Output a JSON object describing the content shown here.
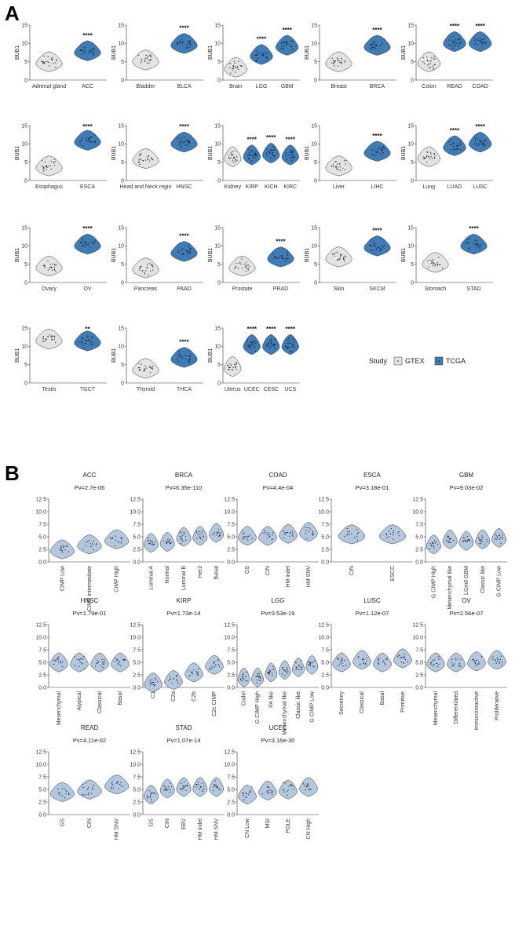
{
  "labels": {
    "panel_a": "A",
    "panel_b": "B"
  },
  "colors": {
    "gtex": "#e3e3e3",
    "tcga": "#3f7bb5",
    "subtype": "#b3c8de",
    "stroke": "#333333",
    "dot": "#111111"
  },
  "legend": {
    "title": "Study",
    "items": [
      {
        "label": "GTEX",
        "color": "#e3e3e3"
      },
      {
        "label": "TCGA",
        "color": "#3f7bb5"
      }
    ]
  },
  "chart_data": [
    {
      "panel": "A",
      "type": "violin",
      "ylabel": "BUB1",
      "ylim": [
        0,
        15
      ],
      "yticks": [
        0,
        5,
        10,
        15
      ],
      "plots": [
        {
          "groups": [
            {
              "label": "Adrenal gland",
              "study": "GTEX",
              "median": 5
            },
            {
              "label": "ACC",
              "study": "TCGA",
              "median": 8,
              "sig": "****"
            }
          ]
        },
        {
          "groups": [
            {
              "label": "Bladder",
              "study": "GTEX",
              "median": 5.5
            },
            {
              "label": "BLCA",
              "study": "TCGA",
              "median": 10,
              "sig": "****"
            }
          ]
        },
        {
          "groups": [
            {
              "label": "Brain",
              "study": "GTEX",
              "median": 3.5
            },
            {
              "label": "LGG",
              "study": "TCGA",
              "median": 7,
              "sig": "****"
            },
            {
              "label": "GBM",
              "study": "TCGA",
              "median": 9.5,
              "sig": "****"
            }
          ]
        },
        {
          "groups": [
            {
              "label": "Breast",
              "study": "GTEX",
              "median": 5
            },
            {
              "label": "BRCA",
              "study": "TCGA",
              "median": 9.5,
              "sig": "****"
            }
          ]
        },
        {
          "groups": [
            {
              "label": "Colon",
              "study": "GTEX",
              "median": 5
            },
            {
              "label": "READ",
              "study": "TCGA",
              "median": 10.5,
              "sig": "****"
            },
            {
              "label": "COAD",
              "study": "TCGA",
              "median": 10.5,
              "sig": "****"
            }
          ]
        },
        {
          "groups": [
            {
              "label": "Esophagus",
              "study": "GTEX",
              "median": 4
            },
            {
              "label": "ESCA",
              "study": "TCGA",
              "median": 11,
              "sig": "****"
            }
          ]
        },
        {
          "groups": [
            {
              "label": "Head and Neck regio",
              "study": "GTEX",
              "median": 6
            },
            {
              "label": "HNSC",
              "study": "TCGA",
              "median": 10.5,
              "sig": "****"
            }
          ]
        },
        {
          "groups": [
            {
              "label": "Kidney",
              "study": "GTEX",
              "median": 6.5
            },
            {
              "label": "KIRP",
              "study": "TCGA",
              "median": 7,
              "sig": "****"
            },
            {
              "label": "KICH",
              "study": "TCGA",
              "median": 7.5,
              "sig": "****"
            },
            {
              "label": "KIRC",
              "study": "TCGA",
              "median": 7,
              "sig": "****"
            }
          ]
        },
        {
          "groups": [
            {
              "label": "Liver",
              "study": "GTEX",
              "median": 4
            },
            {
              "label": "LIHC",
              "study": "TCGA",
              "median": 8,
              "sig": "****"
            }
          ]
        },
        {
          "groups": [
            {
              "label": "Lung",
              "study": "GTEX",
              "median": 6.5
            },
            {
              "label": "LUAD",
              "study": "TCGA",
              "median": 9.5,
              "sig": "****"
            },
            {
              "label": "LUSC",
              "study": "TCGA",
              "median": 10.5,
              "sig": "****"
            }
          ]
        },
        {
          "groups": [
            {
              "label": "Ovary",
              "study": "GTEX",
              "median": 4.5
            },
            {
              "label": "OV",
              "study": "TCGA",
              "median": 10.5,
              "sig": "****"
            }
          ]
        },
        {
          "groups": [
            {
              "label": "Pancreas",
              "study": "GTEX",
              "median": 4
            },
            {
              "label": "PAAD",
              "study": "TCGA",
              "median": 8.5,
              "sig": "****"
            }
          ]
        },
        {
          "groups": [
            {
              "label": "Prostate",
              "study": "GTEX",
              "median": 4.5
            },
            {
              "label": "PRAD",
              "study": "TCGA",
              "median": 7,
              "sig": "****"
            }
          ]
        },
        {
          "groups": [
            {
              "label": "Skin",
              "study": "GTEX",
              "median": 7
            },
            {
              "label": "SKCM",
              "study": "TCGA",
              "median": 10,
              "sig": "****"
            }
          ]
        },
        {
          "groups": [
            {
              "label": "Stomach",
              "study": "GTEX",
              "median": 5.5
            },
            {
              "label": "STAD",
              "study": "TCGA",
              "median": 10.5,
              "sig": "****"
            }
          ]
        },
        {
          "groups": [
            {
              "label": "Testis",
              "study": "GTEX",
              "median": 12
            },
            {
              "label": "TGCT",
              "study": "TCGA",
              "median": 11.5,
              "sig": "**"
            }
          ]
        },
        {
          "groups": [
            {
              "label": "Thyroid",
              "study": "GTEX",
              "median": 4
            },
            {
              "label": "THCA",
              "study": "TCGA",
              "median": 7,
              "sig": "****"
            }
          ]
        },
        {
          "groups": [
            {
              "label": "Uterus",
              "study": "GTEX",
              "median": 4.5
            },
            {
              "label": "UCEC",
              "study": "TCGA",
              "median": 10.5,
              "sig": "****"
            },
            {
              "label": "CESC",
              "study": "TCGA",
              "median": 10.5,
              "sig": "****"
            },
            {
              "label": "UCS",
              "study": "TCGA",
              "median": 10.5,
              "sig": "****"
            }
          ]
        }
      ]
    },
    {
      "panel": "B",
      "type": "violin",
      "ylim": [
        0,
        12.5
      ],
      "yticks": [
        "0.0",
        "2.5",
        "5.0",
        "7.5",
        "10.0",
        "12.5"
      ],
      "plots": [
        {
          "title": "ACC",
          "pv": "Pv=2.7e-06",
          "groups": [
            {
              "label": "CIMP Low",
              "median": 2.5
            },
            {
              "label": "CIMP intermediate",
              "median": 3.5
            },
            {
              "label": "CIMP High",
              "median": 4.5
            }
          ]
        },
        {
          "title": "BRCA",
          "pv": "Pv=6.35e-110",
          "groups": [
            {
              "label": "Luminal A",
              "median": 3.8
            },
            {
              "label": "Normal",
              "median": 4
            },
            {
              "label": "Luminal B",
              "median": 5
            },
            {
              "label": "Her2",
              "median": 5.2
            },
            {
              "label": "Basal",
              "median": 5.8
            }
          ]
        },
        {
          "title": "COAD",
          "pv": "Pv=4.4e-04",
          "groups": [
            {
              "label": "GS",
              "median": 5.2
            },
            {
              "label": "CIN",
              "median": 5.2
            },
            {
              "label": "HM indel",
              "median": 5.6
            },
            {
              "label": "HM SNV",
              "median": 6
            }
          ]
        },
        {
          "title": "ESCA",
          "pv": "Pv=3.18e-01",
          "groups": [
            {
              "label": "CIN",
              "median": 5.5
            },
            {
              "label": "ESCC",
              "median": 5.5
            }
          ]
        },
        {
          "title": "GBM",
          "pv": "Pv=9.03e-02",
          "groups": [
            {
              "label": "G CIMP High",
              "median": 3.5
            },
            {
              "label": "Mesenchymal like",
              "median": 4.5
            },
            {
              "label": "LGm6 GBM",
              "median": 4.2
            },
            {
              "label": "Classic like",
              "median": 4.5
            },
            {
              "label": "G CIMP Low",
              "median": 4.8
            }
          ]
        },
        {
          "title": "HNSC",
          "pv": "Pv=1.79e-01",
          "groups": [
            {
              "label": "Mesenchymal",
              "median": 5
            },
            {
              "label": "Atypical",
              "median": 5
            },
            {
              "label": "Classical",
              "median": 5
            },
            {
              "label": "Basal",
              "median": 5
            }
          ]
        },
        {
          "title": "KIRP",
          "pv": "Pv=1.73e-14",
          "groups": [
            {
              "label": "C1",
              "median": 1
            },
            {
              "label": "C2a",
              "median": 1.5
            },
            {
              "label": "C2b",
              "median": 3
            },
            {
              "label": "C2c CIMP",
              "median": 4.5
            }
          ]
        },
        {
          "title": "LGG",
          "pv": "Pv=3.53e-19",
          "groups": [
            {
              "label": "Codel",
              "median": 2
            },
            {
              "label": "G CIMP High",
              "median": 2
            },
            {
              "label": "PA like",
              "median": 3
            },
            {
              "label": "Mesenchymal like",
              "median": 3.5
            },
            {
              "label": "Classic like",
              "median": 4
            },
            {
              "label": "G CIMP Low",
              "median": 4.5
            }
          ]
        },
        {
          "title": "LUSC",
          "pv": "Pv=1.12e-07",
          "groups": [
            {
              "label": "Secretory",
              "median": 5
            },
            {
              "label": "Classical",
              "median": 5.5
            },
            {
              "label": "Basal",
              "median": 5
            },
            {
              "label": "Primitive",
              "median": 5.8
            }
          ]
        },
        {
          "title": "OV",
          "pv": "Pv=2.56e-07",
          "groups": [
            {
              "label": "Mesenchymal",
              "median": 5
            },
            {
              "label": "Differentiated",
              "median": 5
            },
            {
              "label": "Immunoreactive",
              "median": 5.2
            },
            {
              "label": "Proliferative",
              "median": 5.5
            }
          ]
        },
        {
          "title": "READ",
          "pv": "Pv=4.11e-02",
          "groups": [
            {
              "label": "GS",
              "median": 4.5
            },
            {
              "label": "CIN",
              "median": 5
            },
            {
              "label": "HM SNV",
              "median": 6
            }
          ]
        },
        {
          "title": "STAD",
          "pv": "Pv=1.07e-14",
          "groups": [
            {
              "label": "GS",
              "median": 4
            },
            {
              "label": "CIN",
              "median": 5.2
            },
            {
              "label": "EBV",
              "median": 5.5
            },
            {
              "label": "HM indel",
              "median": 5.5
            },
            {
              "label": "HM SNV",
              "median": 5.5
            }
          ]
        },
        {
          "title": "UCEC",
          "pv": "Pv=3.16e-30",
          "groups": [
            {
              "label": "CN Low",
              "median": 4
            },
            {
              "label": "MSI",
              "median": 4.8
            },
            {
              "label": "POLE",
              "median": 5
            },
            {
              "label": "CN High",
              "median": 5.5
            }
          ]
        }
      ]
    }
  ]
}
